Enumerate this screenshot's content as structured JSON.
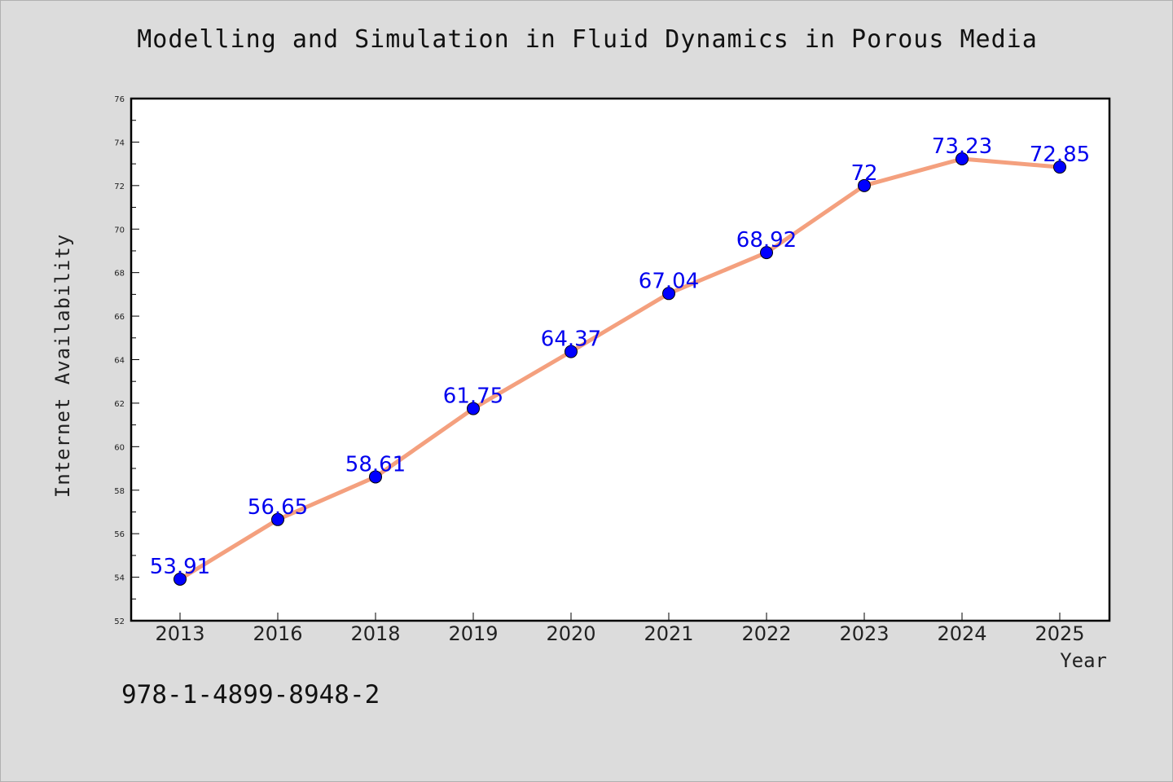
{
  "chart_data": {
    "type": "line",
    "title": "Modelling and Simulation in Fluid Dynamics in Porous Media",
    "xlabel": "Year",
    "ylabel": "Internet Availability",
    "categories": [
      "2013",
      "2016",
      "2018",
      "2019",
      "2020",
      "2021",
      "2022",
      "2023",
      "2024",
      "2025"
    ],
    "values": [
      53.91,
      56.65,
      58.61,
      61.75,
      64.37,
      67.04,
      68.92,
      72,
      73.23,
      72.85
    ],
    "data_labels": [
      "53.91",
      "56.65",
      "58.61",
      "61.75",
      "64.37",
      "67.04",
      "68.92",
      "72",
      "73.23",
      "72.85"
    ],
    "ylim": [
      52,
      76
    ],
    "yticks": [
      52,
      54,
      56,
      58,
      60,
      62,
      64,
      66,
      68,
      70,
      72,
      74,
      76
    ],
    "grid": false,
    "legend": "none",
    "line_color": "#f4a07e",
    "marker_color": "#0000ff",
    "label_color": "#0000ee"
  },
  "footer": {
    "code": "978-1-4899-8948-2"
  }
}
